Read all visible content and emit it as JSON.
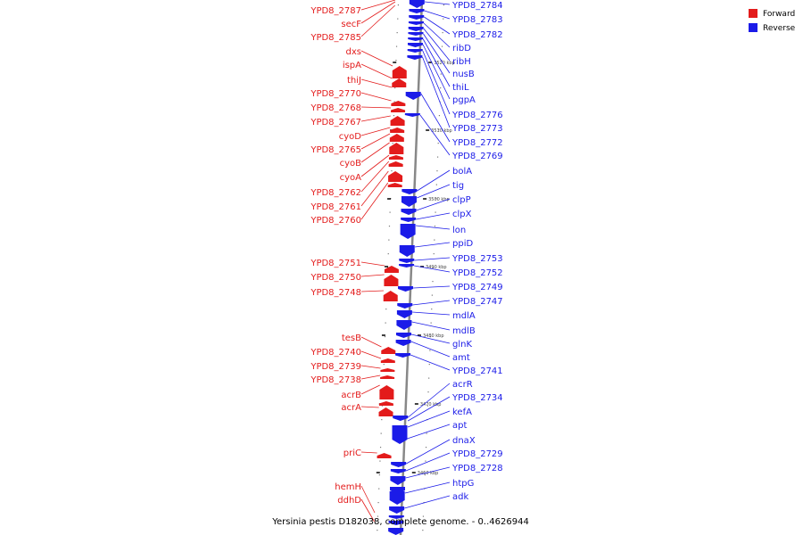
{
  "caption": "Yersinia pestis D182038, complete genome. - 0..4626944",
  "legend": {
    "items": [
      {
        "label": "Forward",
        "color": "#e31b1b"
      },
      {
        "label": "Reverse",
        "color": "#1b1be8"
      }
    ]
  },
  "colors": {
    "forward": "#e31b1b",
    "reverse": "#1b1be8",
    "axis": "#888888"
  },
  "scale": {
    "ticks": [
      {
        "kbp": 3520,
        "label": "3520 kbp"
      },
      {
        "kbp": 3510,
        "label": "3510 kbp"
      },
      {
        "kbp": 3500,
        "label": "3500 kbp"
      },
      {
        "kbp": 3490,
        "label": "3490 kbp"
      },
      {
        "kbp": 3480,
        "label": "3480 kbp"
      },
      {
        "kbp": 3470,
        "label": "3470 kbp"
      },
      {
        "kbp": 3460,
        "label": "3460 kbp"
      }
    ]
  },
  "forward_labels": [
    "YPD8_2787",
    "secF",
    "YPD8_2785",
    "dxs",
    "ispA",
    "thiJ",
    "YPD8_2770",
    "YPD8_2768",
    "YPD8_2767",
    "cyoD",
    "YPD8_2765",
    "cyoB",
    "cyoA",
    "YPD8_2762",
    "YPD8_2761",
    "YPD8_2760",
    "YPD8_2751",
    "YPD8_2750",
    "YPD8_2748",
    "tesB",
    "YPD8_2740",
    "YPD8_2739",
    "YPD8_2738",
    "acrB",
    "acrA",
    "priC",
    "hemH",
    "ddhD"
  ],
  "reverse_labels": [
    "YPD8_2784",
    "YPD8_2783",
    "YPD8_2782",
    "ribD",
    "ribH",
    "nusB",
    "thiL",
    "pgpA",
    "YPD8_2776",
    "YPD8_2773",
    "YPD8_2772",
    "YPD8_2769",
    "bolA",
    "tig",
    "clpP",
    "clpX",
    "lon",
    "ppiD",
    "YPD8_2753",
    "YPD8_2752",
    "YPD8_2749",
    "YPD8_2747",
    "mdlA",
    "mdlB",
    "glnK",
    "amt",
    "YPD8_2741",
    "acrR",
    "YPD8_2734",
    "kefA",
    "apt",
    "dnaX",
    "YPD8_2729",
    "YPD8_2728",
    "htpG",
    "adk"
  ]
}
